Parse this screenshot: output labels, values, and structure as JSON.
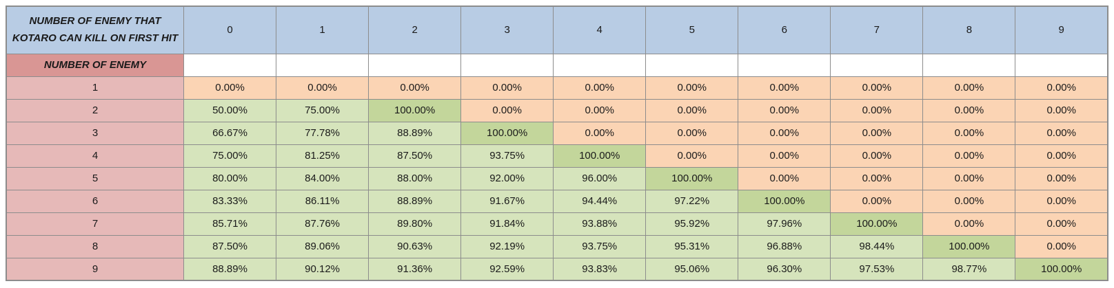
{
  "colors": {
    "header_blue": "#B8CCE4",
    "row_header_dark_pink": "#D99694",
    "row_label_light_pink": "#E6B9B8",
    "cell_zero_orange": "#FBD4B4",
    "cell_partial_light_green": "#D6E4BC",
    "cell_full_dark_green": "#C3D69B",
    "grid_border_gray": "#8C8C8C"
  },
  "cell_rules": {
    "zero_display": "0.00%",
    "full_display": "100.00%"
  },
  "chart_data": {
    "type": "table",
    "corner_header": "NUMBER OF ENEMY THAT\nKOTARO CAN KILL ON FIRST HIT",
    "row_header_label": "NUMBER OF ENEMY",
    "column_headers": [
      "0",
      "1",
      "2",
      "3",
      "4",
      "5",
      "6",
      "7",
      "8",
      "9"
    ],
    "rows": [
      {
        "label": "1",
        "values": [
          "0.00%",
          "0.00%",
          "0.00%",
          "0.00%",
          "0.00%",
          "0.00%",
          "0.00%",
          "0.00%",
          "0.00%",
          "0.00%"
        ]
      },
      {
        "label": "2",
        "values": [
          "50.00%",
          "75.00%",
          "100.00%",
          "0.00%",
          "0.00%",
          "0.00%",
          "0.00%",
          "0.00%",
          "0.00%",
          "0.00%"
        ]
      },
      {
        "label": "3",
        "values": [
          "66.67%",
          "77.78%",
          "88.89%",
          "100.00%",
          "0.00%",
          "0.00%",
          "0.00%",
          "0.00%",
          "0.00%",
          "0.00%"
        ]
      },
      {
        "label": "4",
        "values": [
          "75.00%",
          "81.25%",
          "87.50%",
          "93.75%",
          "100.00%",
          "0.00%",
          "0.00%",
          "0.00%",
          "0.00%",
          "0.00%"
        ]
      },
      {
        "label": "5",
        "values": [
          "80.00%",
          "84.00%",
          "88.00%",
          "92.00%",
          "96.00%",
          "100.00%",
          "0.00%",
          "0.00%",
          "0.00%",
          "0.00%"
        ]
      },
      {
        "label": "6",
        "values": [
          "83.33%",
          "86.11%",
          "88.89%",
          "91.67%",
          "94.44%",
          "97.22%",
          "100.00%",
          "0.00%",
          "0.00%",
          "0.00%"
        ]
      },
      {
        "label": "7",
        "values": [
          "85.71%",
          "87.76%",
          "89.80%",
          "91.84%",
          "93.88%",
          "95.92%",
          "97.96%",
          "100.00%",
          "0.00%",
          "0.00%"
        ]
      },
      {
        "label": "8",
        "values": [
          "87.50%",
          "89.06%",
          "90.63%",
          "92.19%",
          "93.75%",
          "95.31%",
          "96.88%",
          "98.44%",
          "100.00%",
          "0.00%"
        ]
      },
      {
        "label": "9",
        "values": [
          "88.89%",
          "90.12%",
          "91.36%",
          "92.59%",
          "93.83%",
          "95.06%",
          "96.30%",
          "97.53%",
          "98.77%",
          "100.00%"
        ]
      }
    ]
  }
}
